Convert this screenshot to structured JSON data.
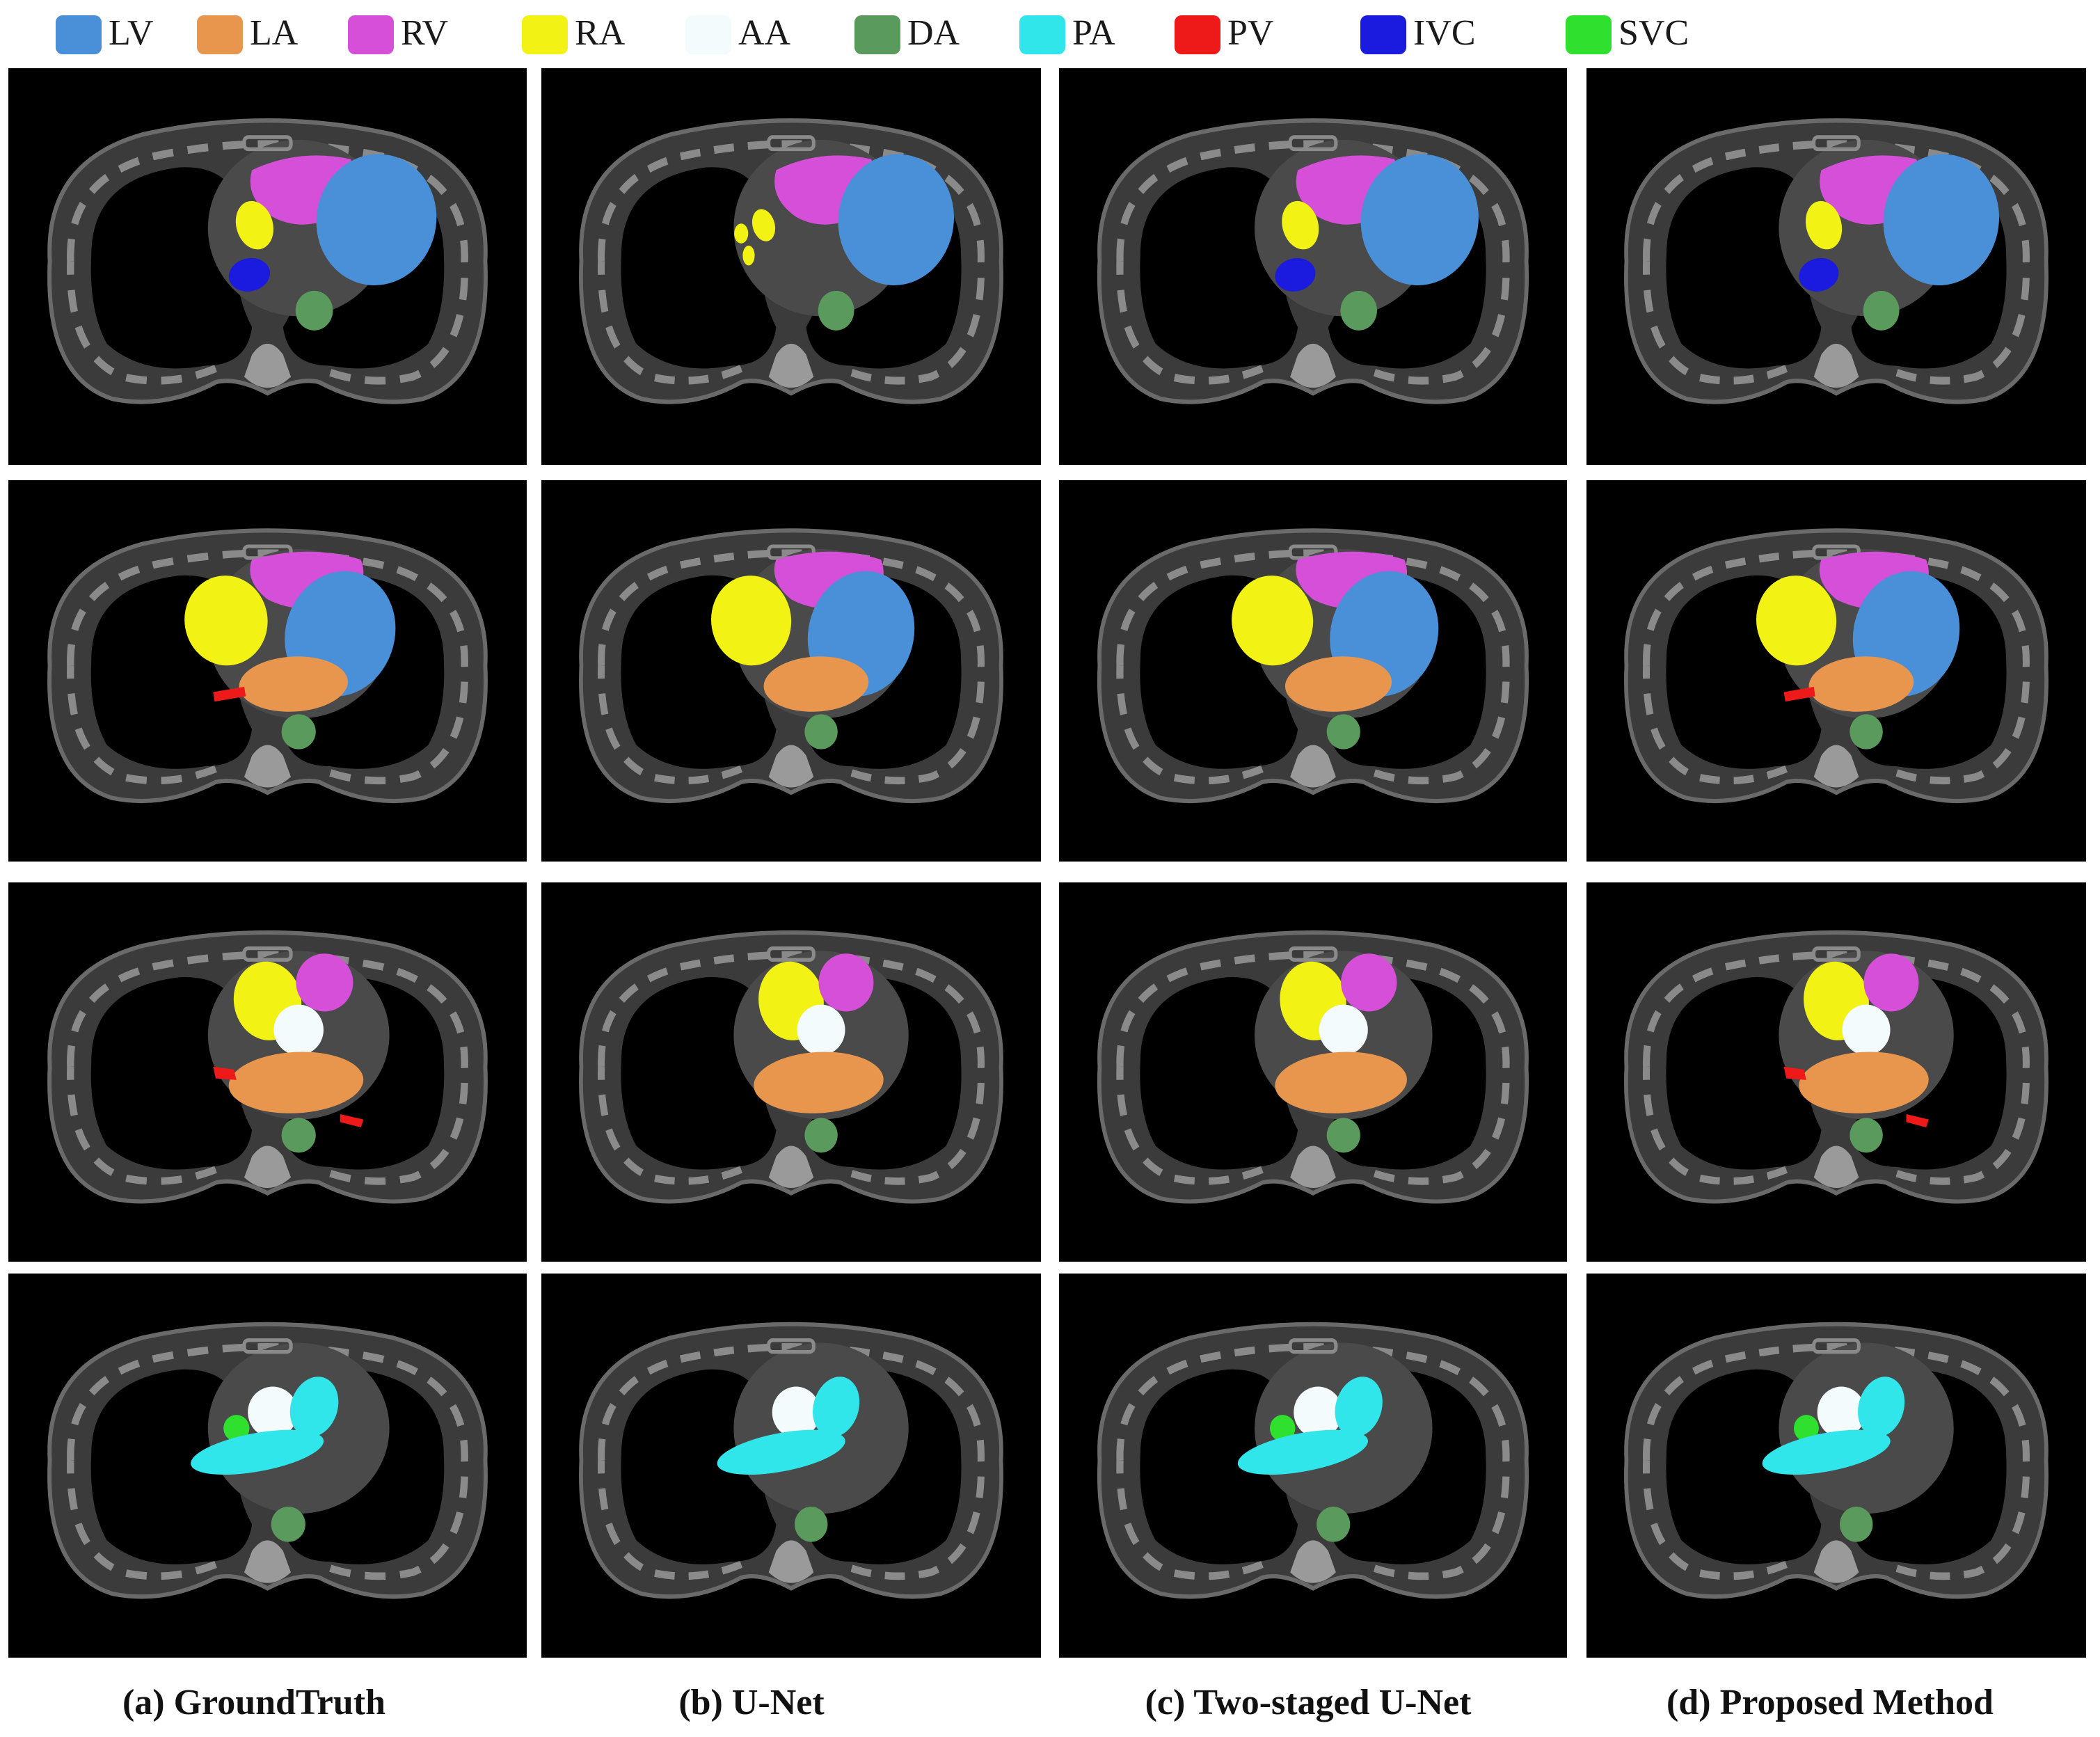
{
  "legend": [
    {
      "label": "LV",
      "color": "#4a90d9"
    },
    {
      "label": "LA",
      "color": "#e8964e"
    },
    {
      "label": "RV",
      "color": "#d64fd8"
    },
    {
      "label": "RA",
      "color": "#f2f215"
    },
    {
      "label": "AA",
      "color": "#f4fbfd"
    },
    {
      "label": "DA",
      "color": "#5a9a5c"
    },
    {
      "label": "PA",
      "color": "#30e6ea"
    },
    {
      "label": "PV",
      "color": "#ee1a1a"
    },
    {
      "label": "IVC",
      "color": "#1b1be0"
    },
    {
      "label": "SVC",
      "color": "#2fe02f"
    }
  ],
  "captions": {
    "a": "(a) GroundTruth",
    "b": "(b) U-Net",
    "c": "(c) Two-staged U-Net",
    "d": "(d) Proposed Method"
  },
  "colors": {
    "panel_background": "#000000",
    "body_tissue": "#3b3b3b",
    "bone": "#8a8a8a",
    "lung": "#000000"
  }
}
